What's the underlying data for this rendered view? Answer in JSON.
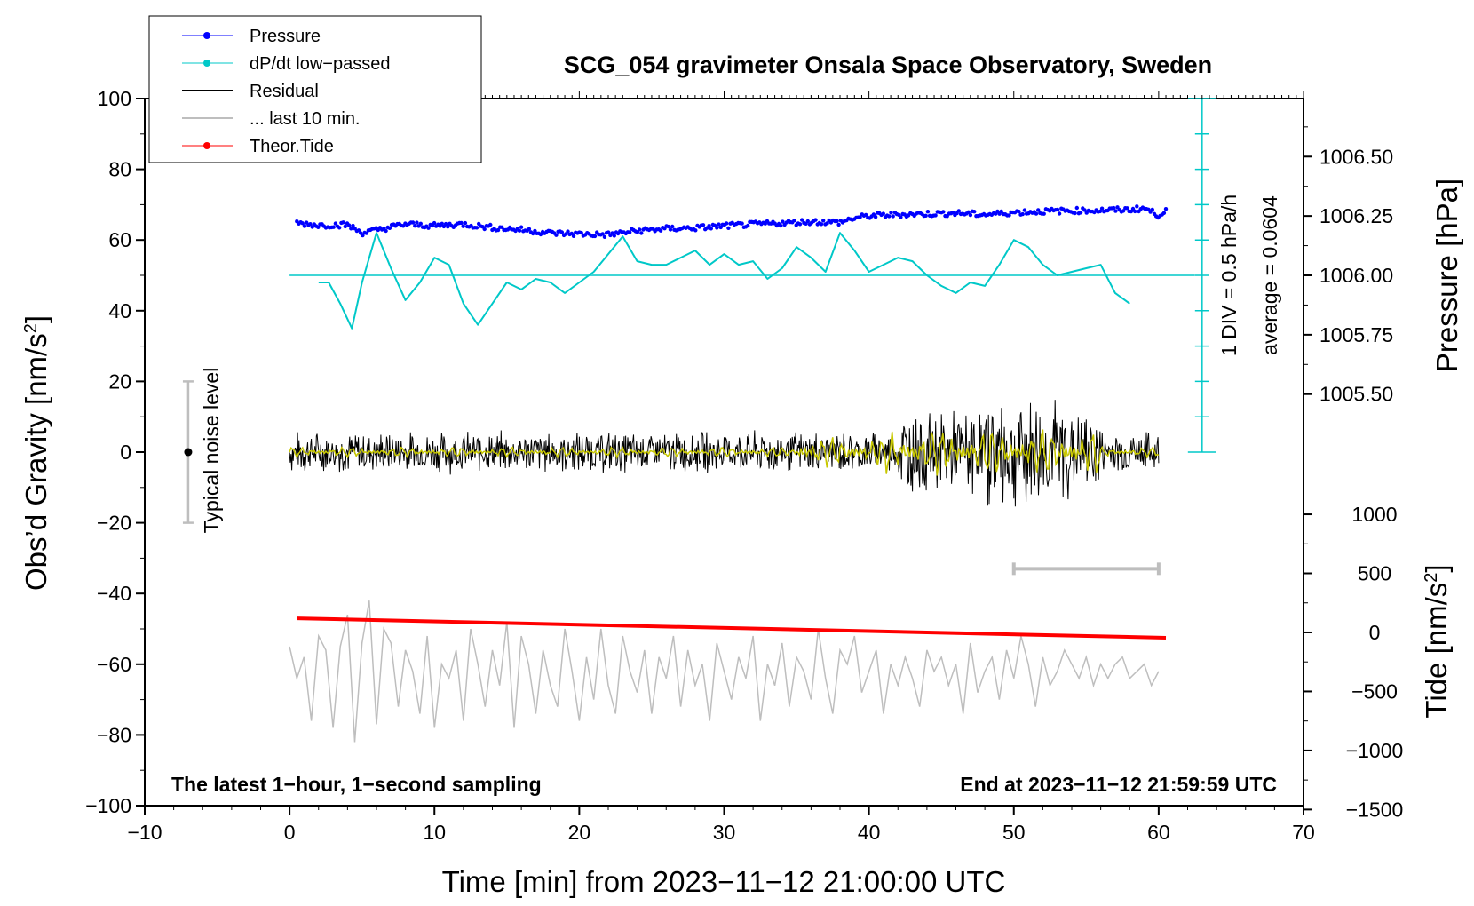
{
  "chart_data": {
    "type": "line",
    "title": "SCG_054 gravimeter Onsala Space Observatory, Sweden",
    "xlabel": "Time [min] from 2023−11−12 21:00:00 UTC",
    "ylabel_left_main": "Obs’d Gravity [nm/s",
    "ylabel_left_sup": "2",
    "ylabel_left_end": "]",
    "ylabel_right_top": "Pressure [hPa]",
    "ylabel_right_bottom_main": "Tide [nm/s",
    "ylabel_right_bottom_sup": "2",
    "ylabel_right_bottom_end": "]",
    "xlim": [
      -10,
      70
    ],
    "ylim": [
      -100,
      100
    ],
    "x_ticks": [
      "−10",
      "0",
      "10",
      "20",
      "30",
      "40",
      "50",
      "60",
      "70"
    ],
    "y_ticks": [
      "100",
      "80",
      "60",
      "40",
      "20",
      "0",
      "−20",
      "−40",
      "−60",
      "−80",
      "−100"
    ],
    "pressure_ticks": [
      "1006.50",
      "1006.25",
      "1006.00",
      "1005.75",
      "1005.50"
    ],
    "tide_ticks": [
      "1000",
      "500",
      "0",
      "−500",
      "−1000",
      "−1500"
    ],
    "legend": [
      {
        "label": "Pressure",
        "color": "#0000ff",
        "marker": true
      },
      {
        "label": "dP/dt low−passed",
        "color": "#00c8c8",
        "marker": true
      },
      {
        "label": "Residual",
        "color": "#000000",
        "marker": false
      },
      {
        "label": "... last 10 min.",
        "color": "#bebebe",
        "marker": false
      },
      {
        "label": "Theor.Tide",
        "color": "#ff0000",
        "marker": true
      }
    ],
    "annotations": {
      "noise_level": "Typical noise level",
      "div_label": "1 DIV = 0.5 hPa/h",
      "average_label": "average = 0.0604",
      "bottom_left": "The latest 1−hour, 1−second sampling",
      "bottom_right": "End at 2023−11−12 21:59:59 UTC"
    },
    "noise_bar": {
      "x": -7,
      "y_low": -20,
      "y_high": 20,
      "center": 0
    },
    "last10_bar": {
      "x_start": 50,
      "x_end": 60,
      "y": -33
    },
    "div_scale": {
      "x": 63,
      "y_low": 0,
      "y_high": 100,
      "divisions": 10
    },
    "dpdt_baseline": 50,
    "pressure_series": {
      "x": [
        0.5,
        2,
        4,
        5,
        6,
        8,
        10,
        12,
        14,
        16,
        18,
        20,
        22,
        24,
        26,
        28,
        30,
        32,
        34,
        36,
        38,
        39,
        40,
        42,
        44,
        46,
        48,
        50,
        52,
        54,
        56,
        58,
        59,
        60,
        60.5
      ],
      "y": [
        64.8,
        64.2,
        64.3,
        62.0,
        62.8,
        64.5,
        64.0,
        64.5,
        63.5,
        62.9,
        62.0,
        61.7,
        61.5,
        62.6,
        63.2,
        63.4,
        64.0,
        64.4,
        64.8,
        65.2,
        65.0,
        66.2,
        66.8,
        67.2,
        67.4,
        67.6,
        67.2,
        67.8,
        68.1,
        68.3,
        68.4,
        68.6,
        69.0,
        67.0,
        68.6
      ]
    },
    "dpdt_series": {
      "x": [
        2,
        2.7,
        3.5,
        4.3,
        5,
        6,
        7,
        8,
        9,
        10,
        11,
        12,
        13,
        14,
        15,
        16,
        17,
        18,
        19,
        20,
        21,
        22,
        23,
        24,
        25,
        26,
        27,
        28,
        29,
        30,
        31,
        32,
        33,
        34,
        35,
        36,
        37,
        38,
        39,
        40,
        41,
        42,
        43,
        44,
        45,
        46,
        47,
        48,
        49,
        50,
        51,
        52,
        53,
        54,
        55,
        56,
        57,
        58
      ],
      "y": [
        48,
        48,
        42,
        35,
        48,
        62,
        52,
        43,
        48,
        55,
        53,
        42,
        36,
        42,
        48,
        46,
        49,
        48,
        45,
        48,
        51,
        56,
        61,
        54,
        53,
        53,
        55,
        57,
        53,
        56,
        53,
        54,
        49,
        52,
        58,
        55,
        51,
        62,
        57,
        51,
        53,
        55,
        54,
        50,
        47,
        45,
        48,
        47,
        53,
        60,
        58,
        53,
        50,
        51,
        52,
        53,
        45,
        42
      ]
    },
    "residual": {
      "x_start": 0,
      "x_end": 60,
      "base_amplitude": 5
    },
    "filtered": {
      "color": "#c8c800"
    },
    "tide_series": {
      "x": [
        0.5,
        60.5
      ],
      "y": [
        -47,
        -52.5
      ]
    },
    "last10_series": {
      "x": [
        0,
        0.5,
        1,
        1.5,
        2,
        2.5,
        3,
        3.5,
        4,
        4.5,
        5,
        5.5,
        6,
        6.5,
        7,
        7.5,
        8,
        8.5,
        9,
        9.5,
        10,
        10.5,
        11,
        11.5,
        12,
        12.5,
        13,
        13.5,
        14,
        14.5,
        15,
        15.5,
        16,
        16.5,
        17,
        17.5,
        18,
        18.5,
        19,
        19.5,
        20,
        20.5,
        21,
        21.5,
        22,
        22.5,
        23,
        23.5,
        24,
        24.5,
        25,
        25.5,
        26,
        26.5,
        27,
        27.5,
        28,
        28.5,
        29,
        29.5,
        30,
        30.5,
        31,
        31.5,
        32,
        32.5,
        33,
        33.5,
        34,
        34.5,
        35,
        35.5,
        36,
        36.5,
        37,
        37.5,
        38,
        38.5,
        39,
        39.5,
        40,
        40.5,
        41,
        41.5,
        42,
        42.5,
        43,
        43.5,
        44,
        44.5,
        45,
        45.5,
        46,
        46.5,
        47,
        47.5,
        48,
        48.5,
        49,
        49.5,
        50,
        50.5,
        51,
        51.5,
        52,
        52.5,
        53,
        53.5,
        54,
        54.5,
        55,
        55.5,
        56,
        56.5,
        57,
        57.5,
        58,
        58.5,
        59,
        59.5,
        60
      ],
      "y": [
        -55,
        -64,
        -58,
        -76,
        -52,
        -56,
        -78,
        -55,
        -46,
        -82,
        -54,
        -42,
        -77,
        -50,
        -54,
        -72,
        -56,
        -62,
        -74,
        -52,
        -78,
        -60,
        -64,
        -56,
        -76,
        -50,
        -60,
        -72,
        -56,
        -66,
        -48,
        -78,
        -52,
        -60,
        -74,
        -56,
        -66,
        -72,
        -50,
        -62,
        -76,
        -58,
        -70,
        -50,
        -66,
        -74,
        -52,
        -62,
        -68,
        -56,
        -74,
        -58,
        -64,
        -52,
        -72,
        -56,
        -66,
        -60,
        -76,
        -54,
        -62,
        -70,
        -58,
        -64,
        -52,
        -76,
        -60,
        -66,
        -54,
        -72,
        -58,
        -62,
        -70,
        -50,
        -64,
        -74,
        -56,
        -60,
        -52,
        -68,
        -62,
        -56,
        -74,
        -60,
        -66,
        -58,
        -64,
        -72,
        -56,
        -62,
        -58,
        -66,
        -60,
        -74,
        -54,
        -68,
        -62,
        -58,
        -70,
        -56,
        -64,
        -52,
        -60,
        -72,
        -58,
        -66,
        -62,
        -56,
        -60,
        -64,
        -58,
        -66,
        -60,
        -64,
        -60,
        -58,
        -64,
        -62,
        -60,
        -66,
        -62
      ]
    }
  }
}
